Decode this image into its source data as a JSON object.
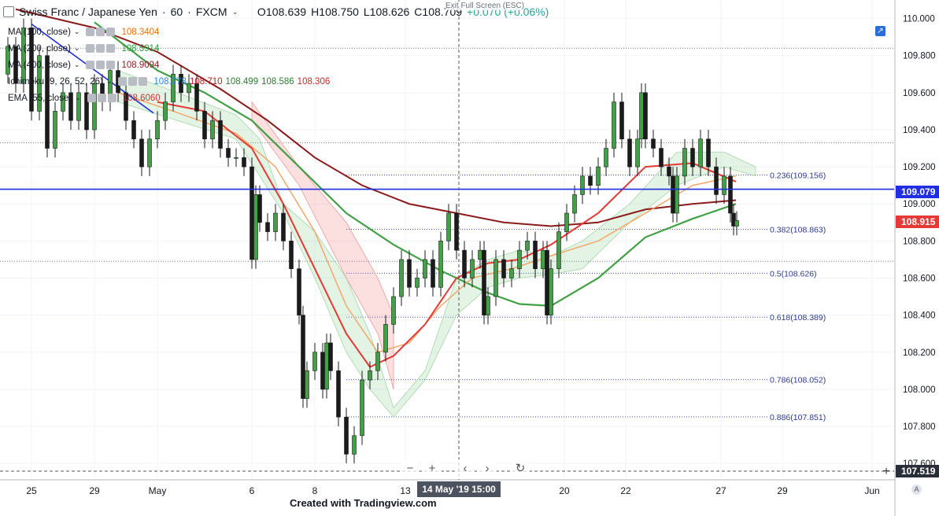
{
  "header": {
    "symbol": "Swiss Franc / Japanese Yen",
    "interval": "60",
    "exchange": "FXCM",
    "open": "O108.639",
    "high": "H108.750",
    "low": "L108.626",
    "close": "C108.709",
    "change": "+0.070 (+0.06%)",
    "exit_full_screen": "Exit Full Screen (ESC)"
  },
  "legend": [
    {
      "label": "MA (100, close)",
      "value": "108.3404",
      "color": "#ef6c00"
    },
    {
      "label": "MA (200, close)",
      "value": "108.5914",
      "color": "#2e9c3a"
    },
    {
      "label": "MA (400, close)",
      "value": "108.9094",
      "color": "#8b1a1a"
    },
    {
      "label": "Ichimoku (9, 26, 52, 26)",
      "value": "108.778",
      "color": "#1e88e5",
      "values": [
        {
          "v": "108.778",
          "color": "#1e88e5"
        },
        {
          "v": "108.710",
          "color": "#b71c1c"
        },
        {
          "v": "108.499",
          "color": "#2e7d32"
        },
        {
          "v": "108.586",
          "color": "#2e7d32"
        },
        {
          "v": "108.306",
          "color": "#c62828"
        }
      ]
    },
    {
      "label": "EMA (55, close)",
      "value": "108.6060",
      "color": "#d32f2f"
    }
  ],
  "footer": "Created with Tradingview.com",
  "crosshair_date": "14 May '19   15:00",
  "price_tags": {
    "current": "109.079",
    "last": "108.915",
    "crosshair": "107.519"
  },
  "chart_data": {
    "type": "line",
    "title": "Swiss Franc / Japanese Yen · 60 · FXCM",
    "x_ticks": [
      "25",
      "29",
      "May",
      "6",
      "8",
      "13",
      "20",
      "22",
      "27",
      "29",
      "Jun"
    ],
    "y_ticks": [
      "110.000",
      "109.800",
      "109.600",
      "109.400",
      "109.200",
      "109.000",
      "108.800",
      "108.600",
      "108.400",
      "108.200",
      "108.000",
      "107.800",
      "107.600"
    ],
    "ylim": [
      107.52,
      110.1
    ],
    "horizontal_line": 109.079,
    "fibonacci": [
      {
        "label": "0.236(109.156)",
        "value": 109.156
      },
      {
        "label": "0.382(108.863)",
        "value": 108.863
      },
      {
        "label": "0.5(108.626)",
        "value": 108.626
      },
      {
        "label": "0.618(108.389)",
        "value": 108.389
      },
      {
        "label": "0.786(108.052)",
        "value": 108.052
      },
      {
        "label": "0.886(107.851)",
        "value": 107.851
      }
    ],
    "price_path": [
      [
        0,
        109.7
      ],
      [
        10,
        109.85
      ],
      [
        20,
        109.65
      ],
      [
        30,
        109.95
      ],
      [
        40,
        109.5
      ],
      [
        50,
        109.8
      ],
      [
        60,
        109.3
      ],
      [
        70,
        109.5
      ],
      [
        80,
        109.6
      ],
      [
        90,
        109.45
      ],
      [
        100,
        109.6
      ],
      [
        110,
        109.4
      ],
      [
        120,
        109.65
      ],
      [
        130,
        109.55
      ],
      [
        140,
        109.72
      ],
      [
        150,
        109.6
      ],
      [
        160,
        109.45
      ],
      [
        170,
        109.35
      ],
      [
        180,
        109.2
      ],
      [
        190,
        109.35
      ],
      [
        200,
        109.45
      ],
      [
        210,
        109.55
      ],
      [
        220,
        109.7
      ],
      [
        230,
        109.6
      ],
      [
        240,
        109.65
      ],
      [
        250,
        109.5
      ],
      [
        260,
        109.35
      ],
      [
        270,
        109.45
      ],
      [
        280,
        109.3
      ],
      [
        290,
        109.25
      ],
      [
        300,
        109.25
      ],
      [
        310,
        109.2
      ],
      [
        320,
        108.7
      ],
      [
        325,
        109.05
      ],
      [
        330,
        108.9
      ],
      [
        340,
        108.85
      ],
      [
        350,
        108.95
      ],
      [
        360,
        108.8
      ],
      [
        370,
        108.65
      ],
      [
        380,
        108.4
      ],
      [
        385,
        107.95
      ],
      [
        390,
        108.1
      ],
      [
        400,
        108.2
      ],
      [
        410,
        108.0
      ],
      [
        415,
        108.25
      ],
      [
        420,
        108.1
      ],
      [
        430,
        107.85
      ],
      [
        440,
        107.65
      ],
      [
        450,
        107.75
      ],
      [
        460,
        108.05
      ],
      [
        470,
        108.1
      ],
      [
        480,
        108.2
      ],
      [
        490,
        108.35
      ],
      [
        500,
        108.5
      ],
      [
        510,
        108.7
      ],
      [
        520,
        108.55
      ],
      [
        530,
        108.6
      ],
      [
        540,
        108.7
      ],
      [
        550,
        108.55
      ],
      [
        560,
        108.8
      ],
      [
        570,
        108.95
      ],
      [
        580,
        108.75
      ],
      [
        590,
        108.6
      ],
      [
        600,
        108.7
      ],
      [
        610,
        108.75
      ],
      [
        615,
        108.4
      ],
      [
        620,
        108.5
      ],
      [
        630,
        108.7
      ],
      [
        640,
        108.6
      ],
      [
        650,
        108.65
      ],
      [
        660,
        108.75
      ],
      [
        670,
        108.8
      ],
      [
        680,
        108.65
      ],
      [
        690,
        108.75
      ],
      [
        695,
        108.4
      ],
      [
        700,
        108.65
      ],
      [
        710,
        108.85
      ],
      [
        720,
        108.95
      ],
      [
        730,
        109.05
      ],
      [
        740,
        109.15
      ],
      [
        750,
        109.1
      ],
      [
        760,
        109.2
      ],
      [
        770,
        109.3
      ],
      [
        780,
        109.55
      ],
      [
        790,
        109.35
      ],
      [
        800,
        109.2
      ],
      [
        810,
        109.35
      ],
      [
        815,
        109.6
      ],
      [
        820,
        109.35
      ],
      [
        830,
        109.3
      ],
      [
        840,
        109.2
      ],
      [
        850,
        109.15
      ],
      [
        855,
        108.95
      ],
      [
        860,
        109.15
      ],
      [
        870,
        109.3
      ],
      [
        880,
        109.2
      ],
      [
        890,
        109.35
      ],
      [
        900,
        109.2
      ],
      [
        910,
        109.05
      ],
      [
        920,
        109.15
      ],
      [
        928,
        108.95
      ],
      [
        932,
        108.88
      ],
      [
        936,
        108.91
      ]
    ]
  }
}
